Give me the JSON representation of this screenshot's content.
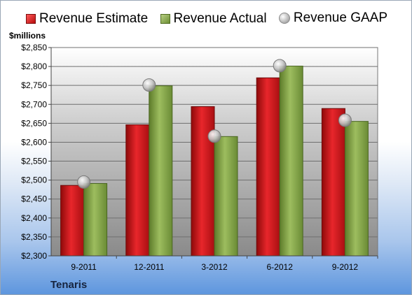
{
  "chart_data": {
    "type": "bar",
    "ylabel": "$millions",
    "ylim": [
      2300,
      2850
    ],
    "ytick_step": 50,
    "categories": [
      "9-2011",
      "12-2011",
      "3-2012",
      "6-2012",
      "9-2012"
    ],
    "series": [
      {
        "name": "Revenue Estimate",
        "kind": "bar",
        "color": "#c8161c",
        "values": [
          2486,
          2646,
          2694,
          2770,
          2689
        ]
      },
      {
        "name": "Revenue Actual",
        "kind": "bar",
        "color": "#86a94a",
        "values": [
          2491,
          2749,
          2615,
          2801,
          2655
        ]
      },
      {
        "name": "Revenue GAAP",
        "kind": "marker",
        "color": "#b0b0b0",
        "values": [
          2495,
          2751,
          2616,
          2802,
          2658
        ]
      }
    ],
    "legend": "top",
    "grid": true
  },
  "company": "Tenaris"
}
